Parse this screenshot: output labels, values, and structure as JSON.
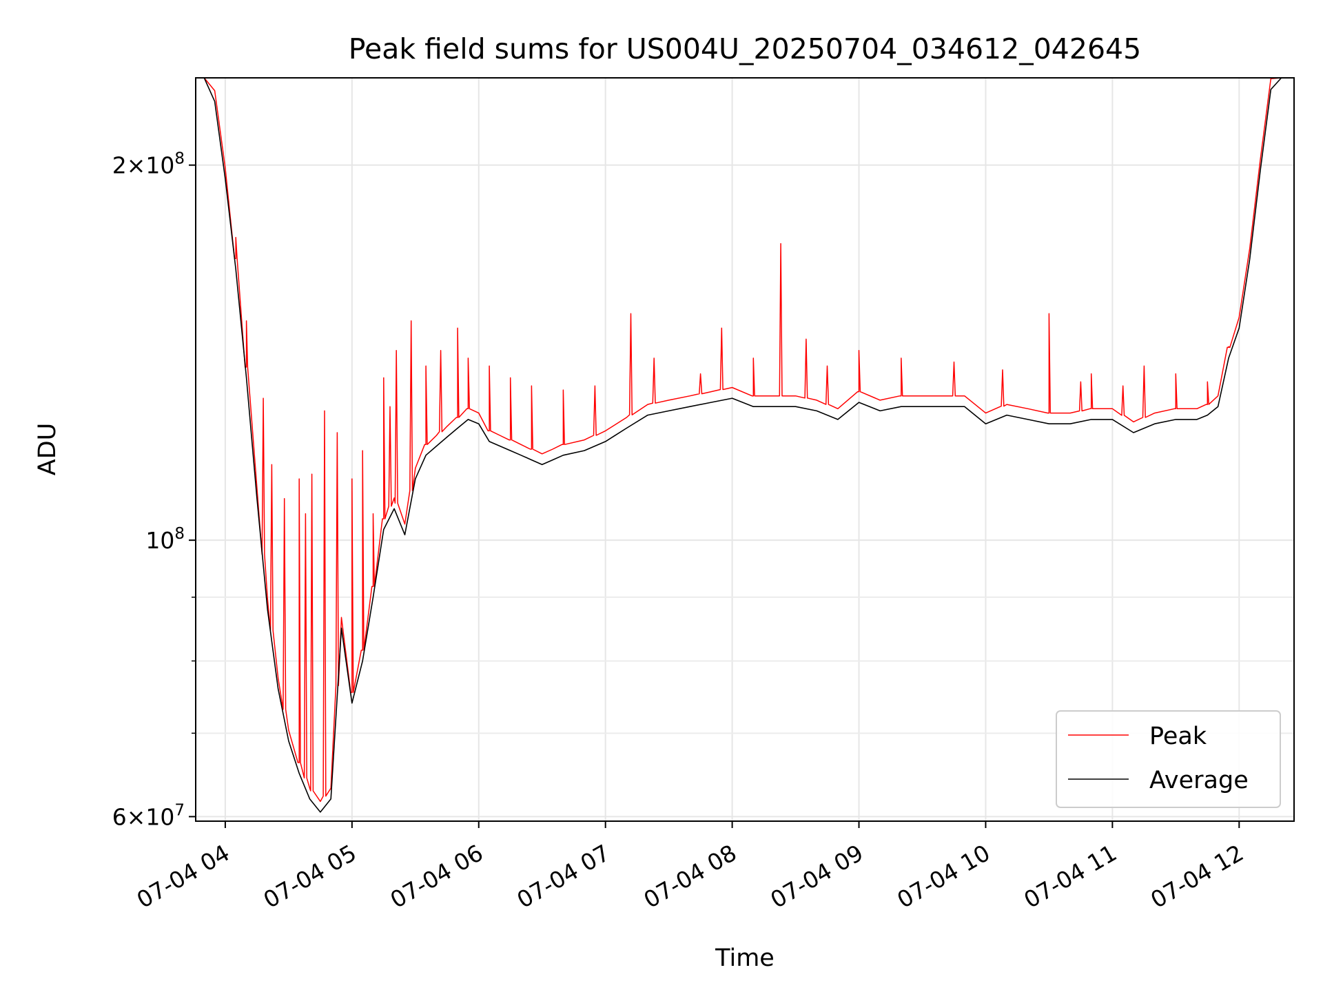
{
  "chart_data": {
    "type": "line",
    "title": "Peak field sums for US004U_20250704_034612_042645",
    "xlabel": "Time",
    "ylabel": "ADU",
    "x_range": [
      "07-04 03:46",
      "07-04 12:26"
    ],
    "y_scale": "log",
    "ylim": [
      59500000,
      235000000
    ],
    "x_ticks": [
      {
        "label": "07-04 04",
        "hour": 4
      },
      {
        "label": "07-04 05",
        "hour": 5
      },
      {
        "label": "07-04 06",
        "hour": 6
      },
      {
        "label": "07-04 07",
        "hour": 7
      },
      {
        "label": "07-04 08",
        "hour": 8
      },
      {
        "label": "07-04 09",
        "hour": 9
      },
      {
        "label": "07-04 10",
        "hour": 10
      },
      {
        "label": "07-04 11",
        "hour": 11
      },
      {
        "label": "07-04 12",
        "hour": 12
      }
    ],
    "y_major_ticks": [
      {
        "value": 60000000,
        "mantissa": "6",
        "exponent": "7"
      },
      {
        "value": 100000000,
        "mantissa": "",
        "exponent": "8"
      },
      {
        "value": 200000000,
        "mantissa": "2",
        "exponent": "8"
      }
    ],
    "y_minor_ticks": [
      70000000,
      80000000,
      90000000
    ],
    "grid": true,
    "legend": {
      "placement": "lower-right",
      "entries": [
        "Peak",
        "Average"
      ]
    },
    "series": [
      {
        "name": "Average",
        "color": "#000000",
        "x": [
          "03:46",
          "03:50",
          "03:55",
          "04:00",
          "04:05",
          "04:10",
          "04:15",
          "04:20",
          "04:25",
          "04:30",
          "04:35",
          "04:40",
          "04:45",
          "04:50",
          "04:55",
          "05:00",
          "05:05",
          "05:10",
          "05:15",
          "05:20",
          "05:25",
          "05:30",
          "05:35",
          "05:40",
          "05:45",
          "05:50",
          "05:55",
          "06:00",
          "06:05",
          "06:10",
          "06:15",
          "06:20",
          "06:25",
          "06:30",
          "06:35",
          "06:40",
          "06:50",
          "07:00",
          "07:10",
          "07:20",
          "07:30",
          "07:40",
          "07:50",
          "08:00",
          "08:10",
          "08:20",
          "08:30",
          "08:40",
          "08:50",
          "09:00",
          "09:10",
          "09:20",
          "09:30",
          "09:40",
          "09:50",
          "10:00",
          "10:10",
          "10:20",
          "10:30",
          "10:40",
          "10:50",
          "11:00",
          "11:10",
          "11:20",
          "11:30",
          "11:40",
          "11:45",
          "11:50",
          "11:55",
          "12:00",
          "12:05",
          "12:10",
          "12:15",
          "12:20",
          "12:26"
        ],
        "y": [
          235000000,
          235000000,
          225000000,
          195000000,
          165000000,
          135000000,
          108000000,
          88000000,
          76000000,
          69000000,
          65000000,
          62000000,
          60500000,
          62000000,
          85000000,
          74000000,
          80000000,
          90000000,
          102000000,
          106000000,
          101000000,
          112000000,
          117000000,
          119000000,
          121000000,
          123000000,
          125000000,
          124000000,
          120000000,
          119000000,
          118000000,
          117000000,
          116000000,
          115000000,
          116000000,
          117000000,
          118000000,
          120000000,
          123000000,
          126000000,
          127000000,
          128000000,
          129000000,
          130000000,
          128000000,
          128000000,
          128000000,
          127000000,
          125000000,
          129000000,
          127000000,
          128000000,
          128000000,
          128000000,
          128000000,
          124000000,
          126000000,
          125000000,
          124000000,
          124000000,
          125000000,
          125000000,
          122000000,
          124000000,
          125000000,
          125000000,
          126000000,
          128000000,
          140000000,
          148000000,
          168000000,
          198000000,
          230000000,
          235000000,
          235000000
        ]
      },
      {
        "name": "Peak",
        "color": "#ff0000",
        "x": [
          "04:05",
          "04:10",
          "04:18",
          "04:22",
          "04:28",
          "04:35",
          "04:38",
          "04:41",
          "04:47",
          "04:53",
          "05:00",
          "05:05",
          "05:10",
          "05:15",
          "05:18",
          "05:21",
          "05:28",
          "05:35",
          "05:42",
          "05:50",
          "05:55",
          "06:05",
          "06:15",
          "06:25",
          "06:40",
          "06:55",
          "07:12",
          "07:23",
          "07:45",
          "07:55",
          "08:10",
          "08:23",
          "08:35",
          "08:45",
          "09:00",
          "09:20",
          "09:45",
          "10:08",
          "10:30",
          "10:45",
          "10:50",
          "11:05",
          "11:15",
          "11:30",
          "11:45",
          "11:55"
        ],
        "y": [
          175000000,
          150000000,
          130000000,
          115000000,
          108000000,
          112000000,
          105000000,
          113000000,
          127000000,
          122000000,
          112000000,
          118000000,
          105000000,
          135000000,
          128000000,
          142000000,
          150000000,
          138000000,
          142000000,
          148000000,
          140000000,
          138000000,
          135000000,
          133000000,
          132000000,
          133000000,
          152000000,
          140000000,
          136000000,
          148000000,
          140000000,
          173000000,
          145000000,
          138000000,
          142000000,
          140000000,
          139000000,
          137000000,
          152000000,
          134000000,
          136000000,
          133000000,
          138000000,
          136000000,
          134000000,
          143000000
        ]
      }
    ]
  }
}
